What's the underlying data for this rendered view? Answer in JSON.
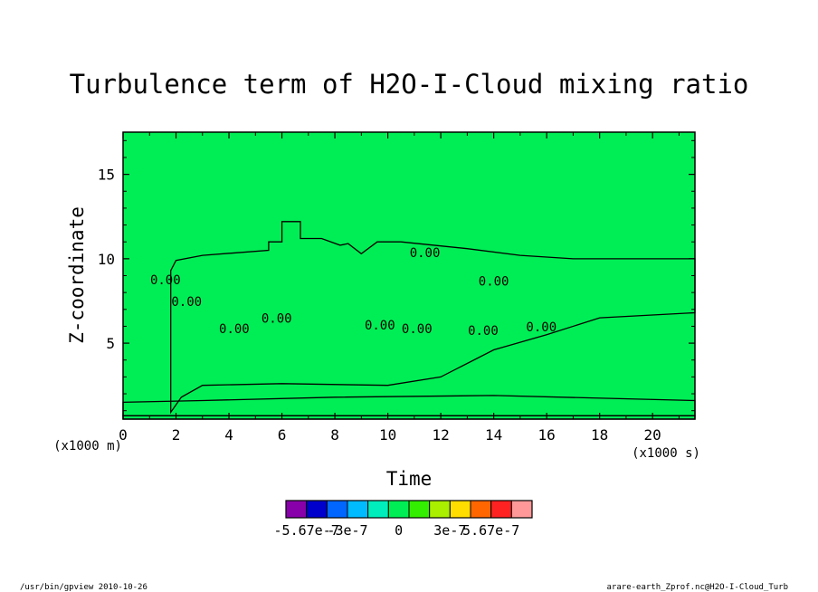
{
  "chart_data": {
    "type": "heatmap",
    "title": "Turbulence term of H2O-I-Cloud mixing ratio",
    "xlabel": "Time",
    "ylabel": "Z-coordinate",
    "x_unit": "(x1000 s)",
    "y_unit": "(x1000 m)",
    "xlim": [
      0,
      21.6
    ],
    "ylim": [
      0.5,
      17.5
    ],
    "x_ticks": [
      0,
      2,
      4,
      6,
      8,
      10,
      12,
      14,
      16,
      18,
      20
    ],
    "y_ticks": [
      5,
      10,
      15
    ],
    "background_value": 0,
    "contour_label": "0.00",
    "contour_labels": [
      {
        "x": 11.4,
        "y": 10.1,
        "text": "0.00"
      },
      {
        "x": 14.0,
        "y": 8.4,
        "text": "0.00"
      },
      {
        "x": 15.8,
        "y": 5.7,
        "text": "0.00"
      },
      {
        "x": 13.6,
        "y": 5.5,
        "text": "0.00"
      },
      {
        "x": 1.6,
        "y": 8.5,
        "text": "0.00"
      },
      {
        "x": 2.4,
        "y": 7.2,
        "text": "0.00"
      },
      {
        "x": 4.2,
        "y": 5.6,
        "text": "0.00"
      },
      {
        "x": 5.8,
        "y": 6.2,
        "text": "0.00"
      },
      {
        "x": 9.7,
        "y": 5.8,
        "text": "0.00"
      },
      {
        "x": 11.1,
        "y": 5.6,
        "text": "0.00"
      }
    ],
    "regions": [
      {
        "name": "slightly-negative-plume",
        "value": -5e-08,
        "outline": [
          [
            1.8,
            0.9
          ],
          [
            1.8,
            9.3
          ],
          [
            2.0,
            9.9
          ],
          [
            3.0,
            10.2
          ],
          [
            5.5,
            10.5
          ],
          [
            5.5,
            11.0
          ],
          [
            6.0,
            11.0
          ],
          [
            6.0,
            12.2
          ],
          [
            6.7,
            12.2
          ],
          [
            6.7,
            11.2
          ],
          [
            7.5,
            11.2
          ],
          [
            8.2,
            10.8
          ],
          [
            8.5,
            10.9
          ],
          [
            9.0,
            10.3
          ],
          [
            9.6,
            11.0
          ],
          [
            10.5,
            11.0
          ],
          [
            13.0,
            10.6
          ],
          [
            15.0,
            10.2
          ],
          [
            17.0,
            10.0
          ],
          [
            21.6,
            10.0
          ],
          [
            21.6,
            6.8
          ],
          [
            18.0,
            6.5
          ],
          [
            16.0,
            5.5
          ],
          [
            14.0,
            4.6
          ],
          [
            12.0,
            3.0
          ],
          [
            10.0,
            2.5
          ],
          [
            6.0,
            2.6
          ],
          [
            3.0,
            2.5
          ],
          [
            2.2,
            1.8
          ]
        ]
      },
      {
        "name": "surface-negative-band",
        "value": -5e-08,
        "outline": [
          [
            0.0,
            0.7
          ],
          [
            21.6,
            0.7
          ],
          [
            21.6,
            1.6
          ],
          [
            14.0,
            1.9
          ],
          [
            8.0,
            1.8
          ],
          [
            3.0,
            1.6
          ],
          [
            0.0,
            1.5
          ]
        ]
      },
      {
        "name": "lower-neutral-layer",
        "value": 0,
        "outline": [
          [
            0.0,
            0.5
          ],
          [
            21.6,
            0.5
          ],
          [
            21.6,
            0.7
          ],
          [
            0.0,
            0.7
          ]
        ]
      }
    ],
    "colorbar": {
      "tick_labels": [
        "-5.67e-7",
        "-3e-7",
        "0",
        "3e-7",
        "5.67e-7"
      ],
      "tick_values": [
        -5.67e-07,
        -3e-07,
        0,
        3e-07,
        5.67e-07
      ],
      "boundaries": [
        -7e-07,
        -5.67e-07,
        -4.5e-07,
        -3e-07,
        -1.5e-07,
        -5e-08,
        5e-08,
        1.5e-07,
        3e-07,
        4.5e-07,
        5.67e-07,
        7e-07
      ],
      "colors": [
        "#8800aa",
        "#0000cc",
        "#0066ff",
        "#00bbff",
        "#00eebb",
        "#00ee55",
        "#33ee00",
        "#aaee00",
        "#ffdd00",
        "#ff6600",
        "#ff2222",
        "#ff9999"
      ]
    }
  },
  "footer": {
    "left": "/usr/bin/gpview   2010-10-26",
    "right": "arare-earth_Zprof.nc@H2O-I-Cloud_Turb"
  },
  "colors": {
    "background": "#ffffff",
    "neutral_fill": "#33ee00",
    "negative_fill": "#00ee55",
    "contour_line": "#000000"
  }
}
